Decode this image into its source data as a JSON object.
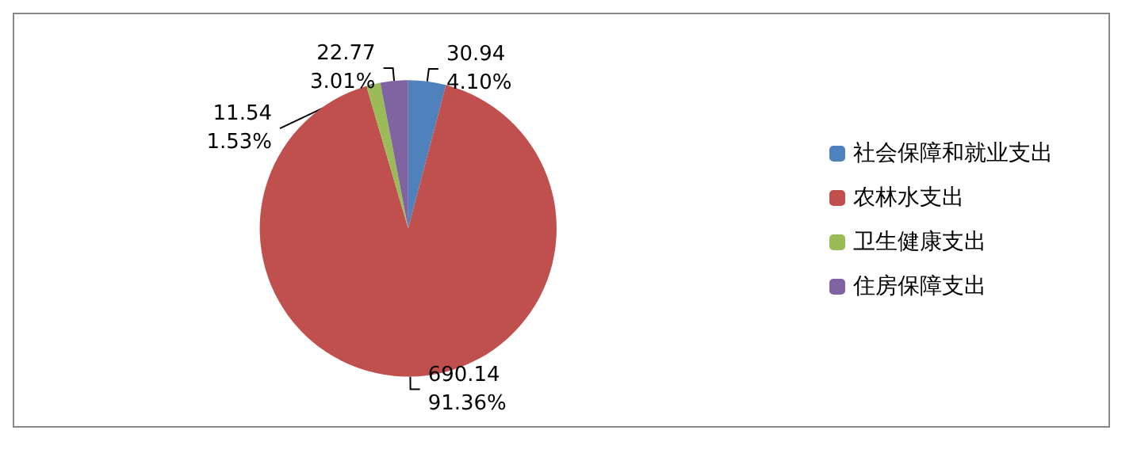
{
  "chart_data": {
    "type": "pie",
    "categories": [
      "社会保障和就业支出",
      "农林水支出",
      "卫生健康支出",
      "住房保障支出"
    ],
    "values": [
      30.94,
      690.14,
      11.54,
      22.77
    ],
    "colors": [
      "#4f81bd",
      "#c0504d",
      "#9bbb59",
      "#8064a2"
    ],
    "value_labels": [
      "30.94\n4.10%",
      "690.14\n91.36%",
      "11.54\n1.53%",
      "22.77\n3.01%"
    ],
    "legend": "right"
  }
}
